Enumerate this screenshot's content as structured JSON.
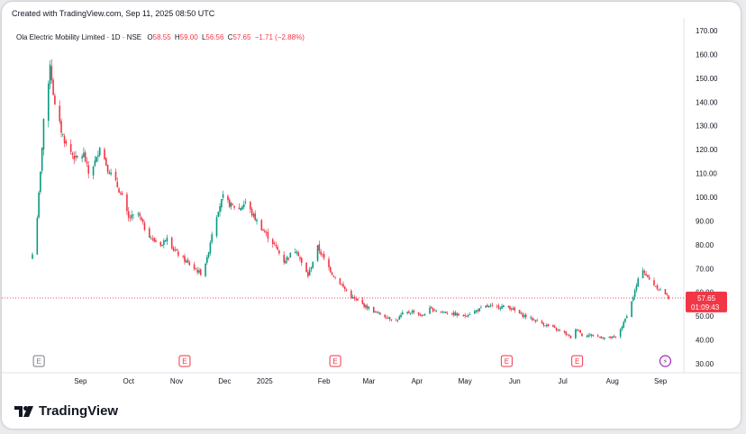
{
  "header": {
    "created": "Created with TradingView.com, Sep 11, 2025 08:50 UTC"
  },
  "legend": {
    "symbol": "Ola Electric Mobility Limited · 1D · NSE",
    "o_label": "O",
    "o_value": "58.55",
    "h_label": "H",
    "h_value": "59.00",
    "l_label": "L",
    "l_value": "56.56",
    "c_label": "C",
    "c_value": "57.65",
    "change": "−1.71 (−2.88%)"
  },
  "price_tag": {
    "price": "57.65",
    "countdown": "01:09:43"
  },
  "brand": {
    "name": "TradingView"
  },
  "colors": {
    "up": "#089981",
    "down": "#f23645",
    "event": "#f23645",
    "dividend": "#9c27b0"
  },
  "chart_data": {
    "type": "candlestick",
    "y_ticks": [
      "170.00",
      "160.00",
      "150.00",
      "140.00",
      "130.00",
      "120.00",
      "110.00",
      "100.00",
      "90.00",
      "80.00",
      "70.00",
      "60.00",
      "50.00",
      "40.00",
      "30.00"
    ],
    "ylim": [
      30,
      170
    ],
    "x_labels": [
      "Sep",
      "Oct",
      "Nov",
      "Dec",
      "2025",
      "Feb",
      "Mar",
      "Apr",
      "May",
      "Jun",
      "Jul",
      "Aug",
      "Sep"
    ],
    "last_price": 57.65,
    "event_markers": [
      {
        "label": "E",
        "period": "Aug 2024",
        "style": "neutral"
      },
      {
        "label": "E",
        "period": "Nov 2024",
        "style": "earnings"
      },
      {
        "label": "E",
        "period": "Feb 2025",
        "style": "earnings"
      },
      {
        "label": "E",
        "period": "Jun 2025",
        "style": "earnings"
      },
      {
        "label": "E",
        "period": "Jul 2025",
        "style": "earnings"
      },
      {
        "label": "⚡",
        "period": "Sep 2025",
        "style": "split"
      }
    ],
    "close_path": [
      [
        "2024-08-09",
        76
      ],
      [
        "2024-08-12",
        92
      ],
      [
        "2024-08-14",
        110
      ],
      [
        "2024-08-16",
        133
      ],
      [
        "2024-08-19",
        146
      ],
      [
        "2024-08-20",
        157
      ],
      [
        "2024-08-21",
        150
      ],
      [
        "2024-08-23",
        138
      ],
      [
        "2024-08-27",
        128
      ],
      [
        "2024-08-30",
        122
      ],
      [
        "2024-09-05",
        116
      ],
      [
        "2024-09-10",
        118
      ],
      [
        "2024-09-13",
        110
      ],
      [
        "2024-09-18",
        116
      ],
      [
        "2024-09-20",
        122
      ],
      [
        "2024-09-25",
        112
      ],
      [
        "2024-09-30",
        106
      ],
      [
        "2024-10-04",
        100
      ],
      [
        "2024-10-08",
        91
      ],
      [
        "2024-10-14",
        93
      ],
      [
        "2024-10-18",
        87
      ],
      [
        "2024-10-23",
        82
      ],
      [
        "2024-10-29",
        80
      ],
      [
        "2024-11-01",
        84
      ],
      [
        "2024-11-05",
        78
      ],
      [
        "2024-11-11",
        74
      ],
      [
        "2024-11-18",
        70
      ],
      [
        "2024-11-22",
        68
      ],
      [
        "2024-11-26",
        74
      ],
      [
        "2024-11-29",
        85
      ],
      [
        "2024-12-03",
        95
      ],
      [
        "2024-12-06",
        100
      ],
      [
        "2024-12-10",
        97
      ],
      [
        "2024-12-16",
        95
      ],
      [
        "2024-12-20",
        98
      ],
      [
        "2024-12-24",
        93
      ],
      [
        "2024-12-31",
        86
      ],
      [
        "2025-01-07",
        80
      ],
      [
        "2025-01-13",
        73
      ],
      [
        "2025-01-17",
        76
      ],
      [
        "2025-01-21",
        78
      ],
      [
        "2025-01-24",
        72
      ],
      [
        "2025-01-28",
        67
      ],
      [
        "2025-02-03",
        79
      ],
      [
        "2025-02-07",
        74
      ],
      [
        "2025-02-12",
        68
      ],
      [
        "2025-02-18",
        63
      ],
      [
        "2025-02-24",
        58
      ],
      [
        "2025-03-03",
        55
      ],
      [
        "2025-03-10",
        52
      ],
      [
        "2025-03-17",
        50
      ],
      [
        "2025-03-24",
        48
      ],
      [
        "2025-03-28",
        51
      ],
      [
        "2025-04-04",
        52
      ],
      [
        "2025-04-09",
        50
      ],
      [
        "2025-04-14",
        53
      ],
      [
        "2025-04-21",
        52
      ],
      [
        "2025-04-28",
        51
      ],
      [
        "2025-05-05",
        50
      ],
      [
        "2025-05-12",
        52
      ],
      [
        "2025-05-19",
        54
      ],
      [
        "2025-05-26",
        54
      ],
      [
        "2025-06-02",
        54
      ],
      [
        "2025-06-09",
        51
      ],
      [
        "2025-06-16",
        49
      ],
      [
        "2025-06-23",
        47
      ],
      [
        "2025-06-30",
        45
      ],
      [
        "2025-07-07",
        43
      ],
      [
        "2025-07-11",
        41
      ],
      [
        "2025-07-15",
        45
      ],
      [
        "2025-07-18",
        42
      ],
      [
        "2025-07-24",
        42
      ],
      [
        "2025-07-31",
        41
      ],
      [
        "2025-08-04",
        41
      ],
      [
        "2025-08-08",
        41
      ],
      [
        "2025-08-13",
        47
      ],
      [
        "2025-08-18",
        56
      ],
      [
        "2025-08-22",
        65
      ],
      [
        "2025-08-25",
        70
      ],
      [
        "2025-08-28",
        66
      ],
      [
        "2025-09-03",
        62
      ],
      [
        "2025-09-08",
        59.4
      ],
      [
        "2025-09-10",
        57.65
      ]
    ]
  }
}
